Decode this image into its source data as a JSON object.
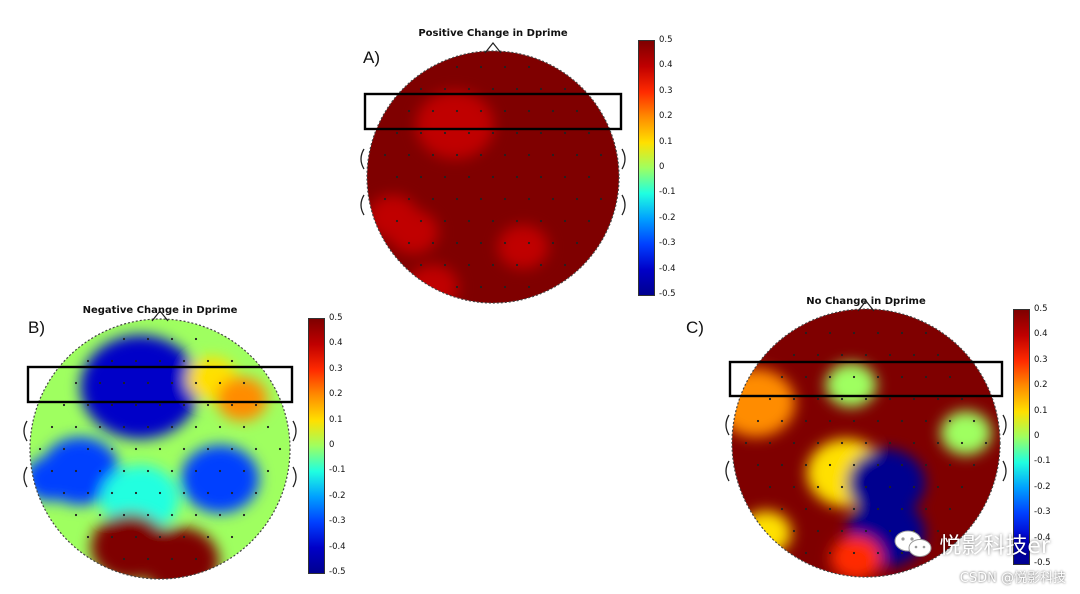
{
  "colorbar": {
    "ticks": [
      "0.5",
      "0.4",
      "0.3",
      "0.2",
      "0.1",
      "0",
      "-0.1",
      "-0.2",
      "-0.3",
      "-0.4",
      "-0.5"
    ],
    "min": -0.5,
    "max": 0.5,
    "colors": [
      "#7f0000",
      "#c00000",
      "#ff2a00",
      "#ff8c00",
      "#ffe000",
      "#9fff60",
      "#20ffe0",
      "#00a0ff",
      "#0040ff",
      "#0000c8",
      "#00008f"
    ]
  },
  "panels": [
    {
      "id": "A",
      "label": "A)",
      "title": "Positive Change in Dprime",
      "background_value": 0.5,
      "blobs": [
        {
          "value": 0.38,
          "spread": "medium"
        },
        {
          "value": 0.42,
          "spread": "small"
        },
        {
          "value": 0.4,
          "spread": "small"
        },
        {
          "value": 0.44,
          "spread": "small"
        },
        {
          "value": 0.43,
          "spread": "small"
        }
      ]
    },
    {
      "id": "B",
      "label": "B)",
      "title": "Negative Change in Dprime",
      "background_value": -0.02,
      "blobs": [
        {
          "value": -0.35,
          "spread": "large"
        },
        {
          "value": -0.3,
          "spread": "medium"
        },
        {
          "value": 0.1,
          "spread": "small"
        },
        {
          "value": 0.25,
          "spread": "small"
        },
        {
          "value": -0.28,
          "spread": "medium"
        },
        {
          "value": -0.1,
          "spread": "medium"
        },
        {
          "value": 0.45,
          "spread": "medium"
        },
        {
          "value": 0.5,
          "spread": "medium"
        },
        {
          "value": -0.25,
          "spread": "small"
        }
      ]
    },
    {
      "id": "C",
      "label": "C)",
      "title": "No Change in Dprime",
      "background_value": 0.5,
      "blobs": [
        {
          "value": 0.2,
          "spread": "medium"
        },
        {
          "value": 0.05,
          "spread": "small"
        },
        {
          "value": 0.1,
          "spread": "medium"
        },
        {
          "value": -0.45,
          "spread": "medium"
        },
        {
          "value": -0.5,
          "spread": "medium"
        },
        {
          "value": 0.15,
          "spread": "small"
        },
        {
          "value": 0.3,
          "spread": "small"
        },
        {
          "value": 0.0,
          "spread": "small"
        }
      ]
    }
  ],
  "watermark": {
    "text": "悦影科技er",
    "icon": "wechat-icon"
  },
  "credit": "CSDN @悦影科技"
}
